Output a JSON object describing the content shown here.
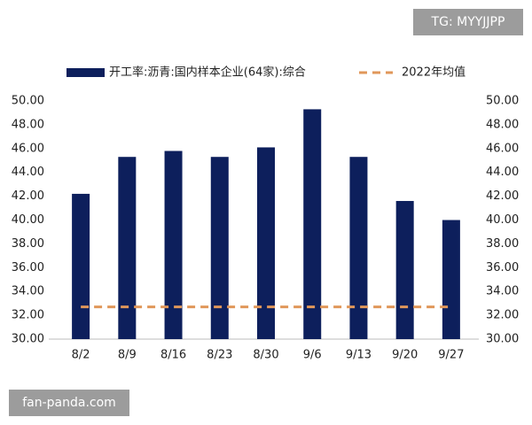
{
  "chart_data": {
    "type": "bar",
    "categories": [
      "8/2",
      "8/9",
      "8/16",
      "8/23",
      "8/30",
      "9/6",
      "9/13",
      "9/20",
      "9/27"
    ],
    "series": [
      {
        "name": "开工率:沥青:国内样本企业(64家):综合",
        "type": "bar",
        "color": "#0d1f5c",
        "values": [
          42.2,
          45.3,
          45.8,
          45.3,
          46.1,
          49.3,
          45.3,
          41.6,
          40.0
        ]
      },
      {
        "name": "2022年均值",
        "type": "line",
        "dashed": true,
        "color": "#e0975a",
        "values": [
          32.7,
          32.7,
          32.7,
          32.7,
          32.7,
          32.7,
          32.7,
          32.7,
          32.7
        ]
      }
    ],
    "ylim": [
      30,
      50
    ],
    "yticks": [
      {
        "value": 30,
        "label": "30.00"
      },
      {
        "value": 32,
        "label": "32.00"
      },
      {
        "value": 34,
        "label": "34.00"
      },
      {
        "value": 36,
        "label": "36.00"
      },
      {
        "value": 38,
        "label": "38.00"
      },
      {
        "value": 40,
        "label": "40.00"
      },
      {
        "value": 42,
        "label": "42.00"
      },
      {
        "value": 44,
        "label": "44.00"
      },
      {
        "value": 46,
        "label": "46.00"
      },
      {
        "value": 48,
        "label": "48.00"
      },
      {
        "value": 50,
        "label": "50.00"
      }
    ],
    "y2lim": [
      30,
      50
    ],
    "y2ticks": [
      {
        "value": 30,
        "label": "30.00"
      },
      {
        "value": 32,
        "label": "32.00"
      },
      {
        "value": 34,
        "label": "34.00"
      },
      {
        "value": 36,
        "label": "36.00"
      },
      {
        "value": 38,
        "label": "38.00"
      },
      {
        "value": 40,
        "label": "40.00"
      },
      {
        "value": 42,
        "label": "42.00"
      },
      {
        "value": 44,
        "label": "44.00"
      },
      {
        "value": 46,
        "label": "46.00"
      },
      {
        "value": 48,
        "label": "48.00"
      },
      {
        "value": 50,
        "label": "50.00"
      }
    ],
    "grid": false,
    "legend": "top"
  },
  "watermarks": [
    "TG: MYYJJPP",
    "fan-panda.com"
  ]
}
